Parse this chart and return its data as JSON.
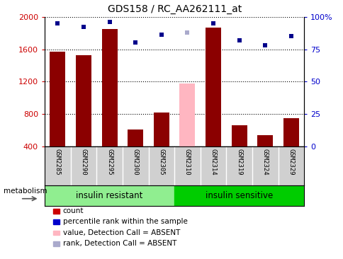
{
  "title": "GDS158 / RC_AA262111_at",
  "samples": [
    "GSM2285",
    "GSM2290",
    "GSM2295",
    "GSM2300",
    "GSM2305",
    "GSM2310",
    "GSM2314",
    "GSM2319",
    "GSM2324",
    "GSM2329"
  ],
  "bar_values": [
    1570,
    1530,
    1850,
    610,
    820,
    0,
    1870,
    660,
    540,
    750
  ],
  "absent_bar_value": 1180,
  "absent_bar_index": 5,
  "dot_values": [
    95,
    92,
    96,
    80,
    86,
    0,
    95,
    82,
    78,
    85
  ],
  "absent_dot_value": 88,
  "absent_dot_index": 5,
  "bar_color": "#8B0000",
  "absent_bar_color": "#FFB6C1",
  "dot_color": "#00008B",
  "absent_dot_color": "#AAAACC",
  "ylim_left": [
    400,
    2000
  ],
  "ylim_right": [
    0,
    100
  ],
  "yticks_left": [
    400,
    800,
    1200,
    1600,
    2000
  ],
  "yticks_right": [
    0,
    25,
    50,
    75,
    100
  ],
  "ytick_labels_right": [
    "0",
    "25",
    "50",
    "75",
    "100%"
  ],
  "group1_label": "insulin resistant",
  "group2_label": "insulin sensitive",
  "group1_indices": [
    0,
    1,
    2,
    3,
    4
  ],
  "group2_indices": [
    5,
    6,
    7,
    8,
    9
  ],
  "group1_color": "#90EE90",
  "group2_color": "#00CC00",
  "metabolism_label": "metabolism",
  "legend_items": [
    {
      "label": "count",
      "color": "#CC0000"
    },
    {
      "label": "percentile rank within the sample",
      "color": "#0000CC"
    },
    {
      "label": "value, Detection Call = ABSENT",
      "color": "#FFB6C1"
    },
    {
      "label": "rank, Detection Call = ABSENT",
      "color": "#AAAACC"
    }
  ],
  "ylabel_left_color": "#CC0000",
  "ylabel_right_color": "#0000CC",
  "bar_width": 0.6,
  "xlim": [
    -0.5,
    9.5
  ]
}
